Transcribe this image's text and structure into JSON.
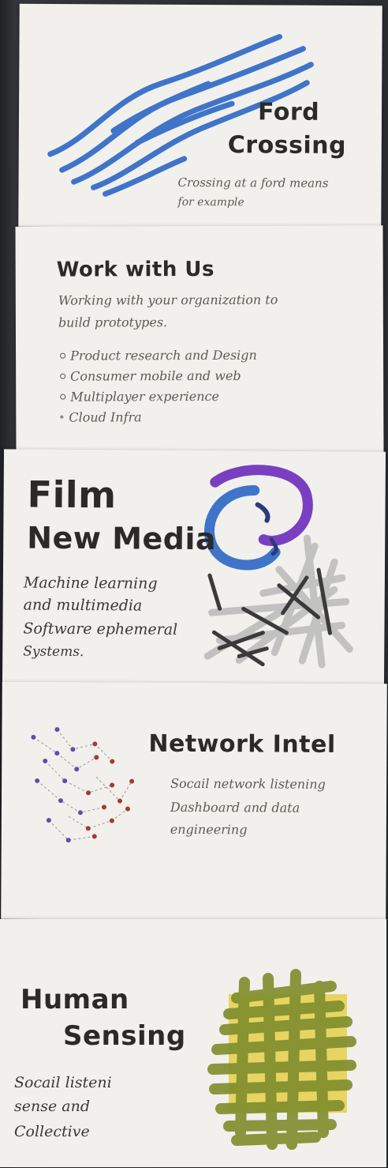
{
  "cards": [
    {
      "title_lines": [
        "Ford",
        "Crossing"
      ],
      "body_lines": [
        "Crossing at a ford means",
        "for example"
      ]
    },
    {
      "title": "Work with Us",
      "intro_lines": [
        "Working with your organization to",
        "build prototypes."
      ],
      "bullets": [
        "Product research and Design",
        "Consumer mobile and web",
        "Multiplayer experience",
        "Cloud Infra"
      ]
    },
    {
      "title_lines": [
        "Film",
        "New Media"
      ],
      "body_lines": [
        "Machine learning",
        "and multimedia",
        "Software ephemeral",
        "Systems."
      ]
    },
    {
      "title": "Network Intel",
      "body_lines": [
        "Socail network listening",
        "Dashboard and data",
        "engineering"
      ]
    },
    {
      "title_lines": [
        "Human",
        "Sensing"
      ],
      "body_lines": [
        "Socail listeni",
        "sense and",
        "Collective"
      ]
    }
  ],
  "colors": {
    "card": "#f1f0ec",
    "blue_marker": "#3f74c9",
    "purple_marker": "#7a3fc0",
    "ink": "#2c2a28",
    "pencil": "#5e5a55",
    "silver": "#bdbdbd",
    "olive": "#7e8d2c",
    "yellow": "#e6cf4a",
    "network_purple": "#5a4fb0",
    "network_red": "#a8382f"
  }
}
